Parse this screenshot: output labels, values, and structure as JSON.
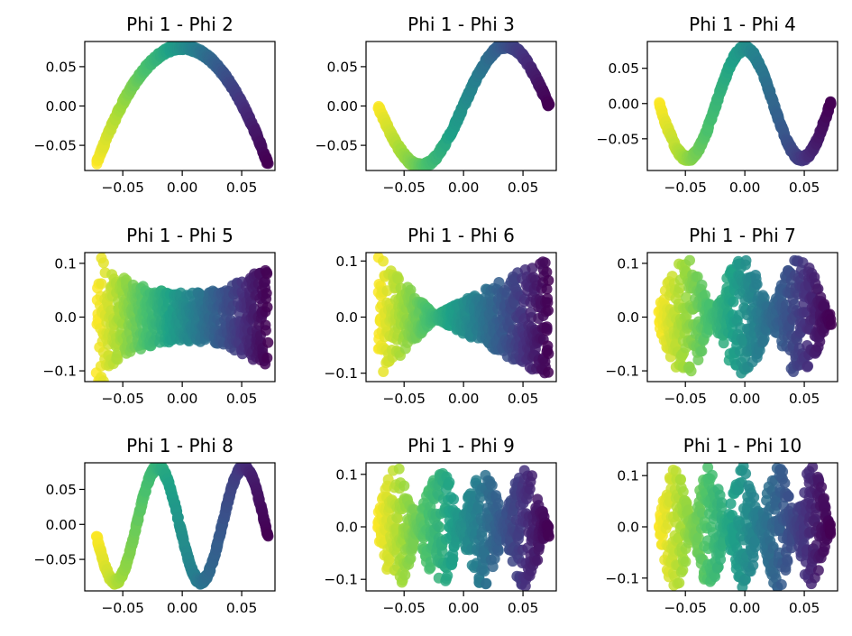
{
  "figure": {
    "colormap": [
      "#440154",
      "#46327e",
      "#365c8d",
      "#277f8e",
      "#1fa187",
      "#4ac16d",
      "#a0da39",
      "#fde725"
    ]
  },
  "chart_data": [
    {
      "type": "scatter",
      "title": "Phi 1 - Phi 2",
      "xlim": [
        -0.082,
        0.078
      ],
      "ylim": [
        -0.082,
        0.082
      ],
      "xticks": [
        -0.05,
        0.0,
        0.05
      ],
      "xtick_labels": [
        "−0.05",
        "0.00",
        "0.05"
      ],
      "yticks": [
        -0.05,
        0.0,
        0.05
      ],
      "ytick_labels": [
        "−0.05",
        "0.00",
        "0.05"
      ],
      "shape": "parabola",
      "spread": 0.0035,
      "points": 1
    },
    {
      "type": "scatter",
      "title": "Phi 1 - Phi 3",
      "xlim": [
        -0.082,
        0.078
      ],
      "ylim": [
        -0.082,
        0.082
      ],
      "xticks": [
        -0.05,
        0.0,
        0.05
      ],
      "xtick_labels": [
        "−0.05",
        "0.00",
        "0.05"
      ],
      "yticks": [
        -0.05,
        0.0,
        0.05
      ],
      "ytick_labels": [
        "−0.05",
        "0.00",
        "0.05"
      ],
      "shape": "cubic",
      "spread": 0.0035,
      "points": 1
    },
    {
      "type": "scatter",
      "title": "Phi 1 - Phi 4",
      "xlim": [
        -0.082,
        0.078
      ],
      "ylim": [
        -0.095,
        0.088
      ],
      "xticks": [
        -0.05,
        0.0,
        0.05
      ],
      "xtick_labels": [
        "−0.05",
        "0.00",
        "0.05"
      ],
      "yticks": [
        -0.05,
        0.0,
        0.05
      ],
      "ytick_labels": [
        "−0.05",
        "0.00",
        "0.05"
      ],
      "shape": "quartic",
      "spread": 0.004,
      "points": 1
    },
    {
      "type": "scatter",
      "title": "Phi 1 - Phi 5",
      "xlim": [
        -0.082,
        0.078
      ],
      "ylim": [
        -0.12,
        0.12
      ],
      "xticks": [
        -0.05,
        0.0,
        0.05
      ],
      "xtick_labels": [
        "−0.05",
        "0.00",
        "0.05"
      ],
      "yticks": [
        -0.1,
        0.0,
        0.1
      ],
      "ytick_labels": [
        "−0.1",
        "0.0",
        "0.1"
      ],
      "shape": "band5",
      "spread": 0,
      "points": 1
    },
    {
      "type": "scatter",
      "title": "Phi 1 - Phi 6",
      "xlim": [
        -0.082,
        0.078
      ],
      "ylim": [
        -0.115,
        0.115
      ],
      "xticks": [
        -0.05,
        0.0,
        0.05
      ],
      "xtick_labels": [
        "−0.05",
        "0.00",
        "0.05"
      ],
      "yticks": [
        -0.1,
        0.0,
        0.1
      ],
      "ytick_labels": [
        "−0.1",
        "0.0",
        "0.1"
      ],
      "shape": "bowtie",
      "spread": 0,
      "points": 1
    },
    {
      "type": "scatter",
      "title": "Phi 1 - Phi 7",
      "xlim": [
        -0.082,
        0.078
      ],
      "ylim": [
        -0.12,
        0.12
      ],
      "xticks": [
        -0.05,
        0.0,
        0.05
      ],
      "xtick_labels": [
        "−0.05",
        "0.00",
        "0.05"
      ],
      "yticks": [
        -0.1,
        0.0,
        0.1
      ],
      "ytick_labels": [
        "−0.1",
        "0.0",
        "0.1"
      ],
      "shape": "lobes7",
      "spread": 0,
      "points": 1
    },
    {
      "type": "scatter",
      "title": "Phi 1 - Phi 8",
      "xlim": [
        -0.082,
        0.078
      ],
      "ylim": [
        -0.095,
        0.088
      ],
      "xticks": [
        -0.05,
        0.0,
        0.05
      ],
      "xtick_labels": [
        "−0.05",
        "0.00",
        "0.05"
      ],
      "yticks": [
        -0.05,
        0.0,
        0.05
      ],
      "ytick_labels": [
        "−0.05",
        "0.00",
        "0.05"
      ],
      "shape": "quintic",
      "spread": 0.004,
      "points": 1
    },
    {
      "type": "scatter",
      "title": "Phi 1 - Phi 9",
      "xlim": [
        -0.082,
        0.078
      ],
      "ylim": [
        -0.122,
        0.122
      ],
      "xticks": [
        -0.05,
        0.0,
        0.05
      ],
      "xtick_labels": [
        "−0.05",
        "0.00",
        "0.05"
      ],
      "yticks": [
        -0.1,
        0.0,
        0.1
      ],
      "ytick_labels": [
        "−0.1",
        "0.0",
        "0.1"
      ],
      "shape": "lobes9",
      "spread": 0,
      "points": 1
    },
    {
      "type": "scatter",
      "title": "Phi 1 - Phi 10",
      "xlim": [
        -0.082,
        0.078
      ],
      "ylim": [
        -0.125,
        0.125
      ],
      "xticks": [
        -0.05,
        0.0,
        0.05
      ],
      "xtick_labels": [
        "−0.05",
        "0.00",
        "0.05"
      ],
      "yticks": [
        -0.1,
        0.0,
        0.1
      ],
      "ytick_labels": [
        "−0.1",
        "0.0",
        "0.1"
      ],
      "shape": "lobes10",
      "spread": 0,
      "points": 1
    }
  ]
}
